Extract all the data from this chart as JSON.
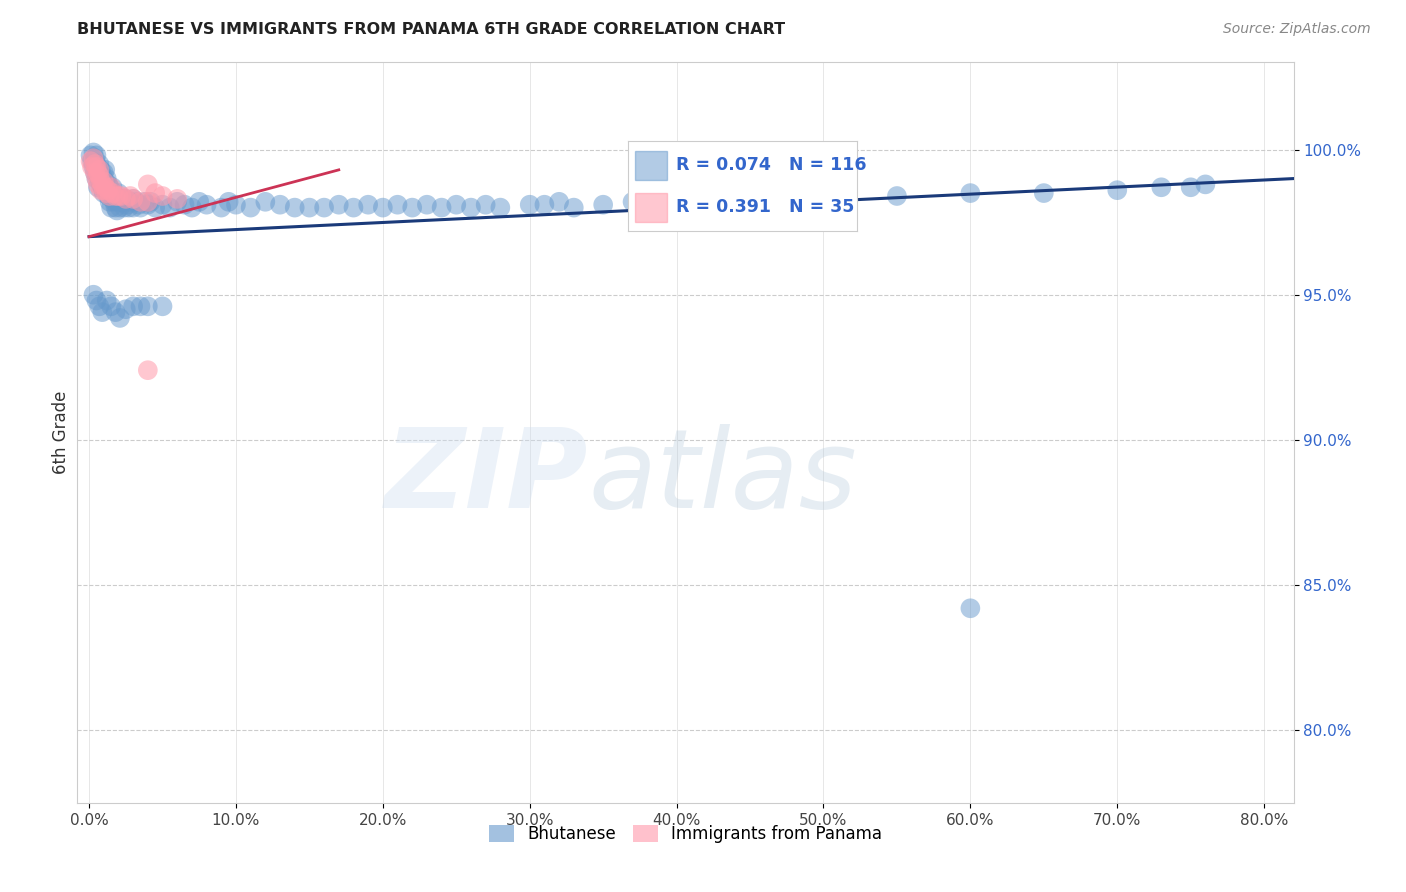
{
  "title": "BHUTANESE VS IMMIGRANTS FROM PANAMA 6TH GRADE CORRELATION CHART",
  "source": "Source: ZipAtlas.com",
  "ylabel": "6th Grade",
  "xlabel_ticks": [
    "0.0%",
    "10.0%",
    "20.0%",
    "30.0%",
    "40.0%",
    "50.0%",
    "60.0%",
    "70.0%",
    "80.0%"
  ],
  "ytick_labels": [
    "80.0%",
    "85.0%",
    "90.0%",
    "95.0%",
    "100.0%"
  ],
  "ytick_values": [
    0.8,
    0.85,
    0.9,
    0.95,
    1.0
  ],
  "xtick_values": [
    0.0,
    0.1,
    0.2,
    0.3,
    0.4,
    0.5,
    0.6,
    0.7,
    0.8
  ],
  "xlim": [
    -0.008,
    0.82
  ],
  "ylim": [
    0.775,
    1.03
  ],
  "R_blue": 0.074,
  "N_blue": 116,
  "R_pink": 0.391,
  "N_pink": 35,
  "blue_color": "#6699cc",
  "pink_color": "#ff99aa",
  "blue_line_color": "#1a3a7a",
  "pink_line_color": "#cc3355",
  "legend_label_blue": "Bhutanese",
  "legend_label_pink": "Immigrants from Panama",
  "blue_x": [
    0.001,
    0.002,
    0.003,
    0.003,
    0.004,
    0.004,
    0.005,
    0.005,
    0.005,
    0.006,
    0.006,
    0.007,
    0.007,
    0.008,
    0.008,
    0.009,
    0.009,
    0.01,
    0.01,
    0.01,
    0.011,
    0.011,
    0.012,
    0.012,
    0.013,
    0.013,
    0.014,
    0.014,
    0.015,
    0.015,
    0.016,
    0.016,
    0.017,
    0.018,
    0.018,
    0.019,
    0.02,
    0.02,
    0.021,
    0.022,
    0.023,
    0.024,
    0.025,
    0.026,
    0.027,
    0.028,
    0.03,
    0.03,
    0.032,
    0.034,
    0.035,
    0.038,
    0.04,
    0.042,
    0.045,
    0.05,
    0.055,
    0.06,
    0.065,
    0.07,
    0.075,
    0.08,
    0.09,
    0.095,
    0.1,
    0.11,
    0.12,
    0.13,
    0.14,
    0.15,
    0.16,
    0.17,
    0.18,
    0.19,
    0.2,
    0.21,
    0.22,
    0.23,
    0.24,
    0.25,
    0.26,
    0.27,
    0.28,
    0.3,
    0.31,
    0.32,
    0.33,
    0.35,
    0.37,
    0.39,
    0.42,
    0.44,
    0.46,
    0.48,
    0.5,
    0.55,
    0.6,
    0.65,
    0.7,
    0.73,
    0.75,
    0.76,
    0.003,
    0.005,
    0.007,
    0.009,
    0.012,
    0.015,
    0.018,
    0.021,
    0.025,
    0.03,
    0.035,
    0.04,
    0.05,
    0.6
  ],
  "blue_y": [
    0.998,
    0.996,
    0.994,
    0.999,
    0.992,
    0.997,
    0.99,
    0.995,
    0.998,
    0.987,
    0.992,
    0.99,
    0.995,
    0.988,
    0.993,
    0.987,
    0.991,
    0.985,
    0.988,
    0.992,
    0.989,
    0.993,
    0.986,
    0.99,
    0.984,
    0.988,
    0.982,
    0.987,
    0.98,
    0.985,
    0.983,
    0.987,
    0.982,
    0.98,
    0.984,
    0.979,
    0.982,
    0.985,
    0.98,
    0.983,
    0.982,
    0.98,
    0.983,
    0.981,
    0.98,
    0.982,
    0.98,
    0.983,
    0.982,
    0.981,
    0.98,
    0.982,
    0.981,
    0.982,
    0.98,
    0.981,
    0.98,
    0.982,
    0.981,
    0.98,
    0.982,
    0.981,
    0.98,
    0.982,
    0.981,
    0.98,
    0.982,
    0.981,
    0.98,
    0.98,
    0.98,
    0.981,
    0.98,
    0.981,
    0.98,
    0.981,
    0.98,
    0.981,
    0.98,
    0.981,
    0.98,
    0.981,
    0.98,
    0.981,
    0.981,
    0.982,
    0.98,
    0.981,
    0.982,
    0.981,
    0.982,
    0.982,
    0.983,
    0.983,
    0.983,
    0.984,
    0.985,
    0.985,
    0.986,
    0.987,
    0.987,
    0.988,
    0.95,
    0.948,
    0.946,
    0.944,
    0.948,
    0.946,
    0.944,
    0.942,
    0.945,
    0.946,
    0.946,
    0.946,
    0.946,
    0.842
  ],
  "pink_x": [
    0.001,
    0.002,
    0.003,
    0.004,
    0.004,
    0.005,
    0.005,
    0.006,
    0.006,
    0.007,
    0.007,
    0.008,
    0.008,
    0.009,
    0.01,
    0.01,
    0.011,
    0.012,
    0.013,
    0.014,
    0.015,
    0.016,
    0.018,
    0.02,
    0.022,
    0.025,
    0.028,
    0.03,
    0.035,
    0.04,
    0.045,
    0.05,
    0.06,
    0.04,
    0.04
  ],
  "pink_y": [
    0.996,
    0.994,
    0.997,
    0.992,
    0.995,
    0.99,
    0.994,
    0.988,
    0.992,
    0.991,
    0.993,
    0.989,
    0.986,
    0.988,
    0.986,
    0.989,
    0.987,
    0.985,
    0.986,
    0.984,
    0.987,
    0.985,
    0.984,
    0.984,
    0.984,
    0.983,
    0.984,
    0.983,
    0.982,
    0.988,
    0.985,
    0.984,
    0.983,
    0.924,
    0.982
  ]
}
